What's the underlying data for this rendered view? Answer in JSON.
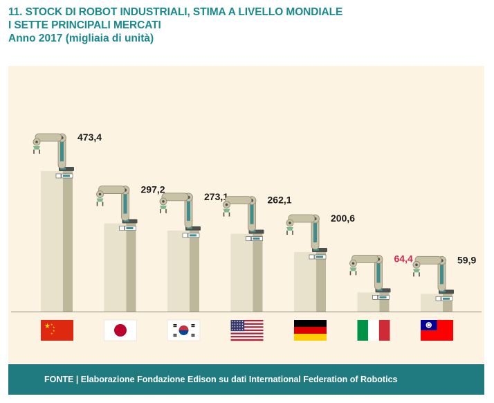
{
  "header": {
    "title_line1": "11. STOCK DI ROBOT INDUSTRIALI, STIMA A LIVELLO MONDIALE",
    "title_line2": "I SETTE PRINCIPALI MERCATI",
    "subtitle": "Anno 2017 (migliaia di unità)"
  },
  "footer": {
    "source": "FONTE | Elaborazione Fondazione Edison su dati International Federation of Robotics"
  },
  "colors": {
    "title": "#1a8a8f",
    "panel_bg": "#fdf3e3",
    "footer_bg": "#1f7b80",
    "pedestal_front": "#e8e2cc",
    "pedestal_side": "#bdb79c",
    "robot_arm": "#c8c2a6",
    "robot_dark": "#4c514e",
    "robot_accent": "#3f8c8e",
    "gripper_green": "#7fb88e",
    "highlight_label": "#d6254f",
    "baseline": "#8a8878"
  },
  "chart_data": {
    "type": "bar",
    "title": "11. STOCK DI ROBOT INDUSTRIALI, STIMA A LIVELLO MONDIALE I SETTE PRINCIPALI MERCATI",
    "subtitle": "Anno 2017 (migliaia di unità)",
    "categories": [
      "china-flag",
      "japan-flag",
      "south-korea-flag",
      "usa-flag",
      "germany-flag",
      "italy-flag",
      "taiwan-flag"
    ],
    "values": [
      473.4,
      297.2,
      273.1,
      262.1,
      200.6,
      64.4,
      59.9
    ],
    "data_labels": [
      "473,4",
      "297,2",
      "273,1",
      "262,1",
      "200,6",
      "64,4",
      "59,9"
    ],
    "highlighted_index": 5,
    "xlabel": "",
    "ylabel": "",
    "ylim": [
      0,
      500
    ],
    "grid": false,
    "legend": "none"
  }
}
